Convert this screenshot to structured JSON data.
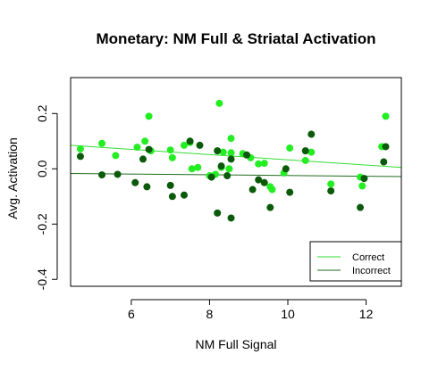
{
  "chart_data": {
    "type": "scatter",
    "title": "Monetary: NM Full & Striatal Activation",
    "xlabel": "NM Full Signal",
    "ylabel": "Avg. Activation",
    "xlim": [
      4.45,
      12.9
    ],
    "ylim": [
      -0.425,
      0.33
    ],
    "xticks": [
      6,
      8,
      10,
      12
    ],
    "yticks": [
      -0.4,
      -0.2,
      0.0,
      0.2
    ],
    "xtick_labels": [
      "6",
      "8",
      "10",
      "12"
    ],
    "ytick_labels": [
      "-0.4",
      "-0.2",
      "0.0",
      "0.2"
    ],
    "grid": false,
    "legend_position": "bottom-right",
    "series": [
      {
        "name": "Correct",
        "color": "#22ee22",
        "line_color": "#33dd33",
        "trend": [
          [
            4.45,
            0.085
          ],
          [
            12.9,
            0.005
          ]
        ],
        "points": [
          [
            4.7,
            0.072
          ],
          [
            5.25,
            0.092
          ],
          [
            5.6,
            0.048
          ],
          [
            6.15,
            0.078
          ],
          [
            6.35,
            0.1
          ],
          [
            6.45,
            0.19
          ],
          [
            6.5,
            0.065
          ],
          [
            7.0,
            0.068
          ],
          [
            7.05,
            0.04
          ],
          [
            7.35,
            0.085
          ],
          [
            7.5,
            0.095
          ],
          [
            7.55,
            0.0
          ],
          [
            7.7,
            0.005
          ],
          [
            8.0,
            -0.025
          ],
          [
            8.15,
            -0.02
          ],
          [
            8.25,
            0.237
          ],
          [
            8.3,
            0.005
          ],
          [
            8.35,
            0.06
          ],
          [
            8.5,
            0.0
          ],
          [
            8.55,
            0.058
          ],
          [
            8.55,
            0.11
          ],
          [
            8.85,
            0.055
          ],
          [
            9.05,
            0.04
          ],
          [
            9.25,
            0.018
          ],
          [
            9.4,
            0.02
          ],
          [
            9.55,
            -0.065
          ],
          [
            9.6,
            -0.075
          ],
          [
            9.9,
            -0.015
          ],
          [
            10.05,
            0.075
          ],
          [
            10.45,
            0.03
          ],
          [
            10.6,
            0.06
          ],
          [
            11.1,
            -0.055
          ],
          [
            11.85,
            -0.03
          ],
          [
            11.9,
            -0.062
          ],
          [
            12.4,
            0.08
          ],
          [
            12.5,
            0.19
          ]
        ]
      },
      {
        "name": "Incorrect",
        "color": "#0a5a0a",
        "line_color": "#1e6b1e",
        "trend": [
          [
            4.45,
            -0.017
          ],
          [
            12.9,
            -0.028
          ]
        ],
        "points": [
          [
            4.7,
            0.045
          ],
          [
            5.25,
            -0.022
          ],
          [
            5.65,
            -0.02
          ],
          [
            6.1,
            -0.05
          ],
          [
            6.3,
            0.035
          ],
          [
            6.4,
            -0.065
          ],
          [
            6.45,
            0.07
          ],
          [
            7.0,
            -0.06
          ],
          [
            7.05,
            -0.1
          ],
          [
            7.35,
            -0.095
          ],
          [
            7.5,
            0.1
          ],
          [
            7.75,
            0.085
          ],
          [
            8.05,
            -0.03
          ],
          [
            8.2,
            -0.16
          ],
          [
            8.2,
            0.065
          ],
          [
            8.3,
            0.01
          ],
          [
            8.45,
            -0.025
          ],
          [
            8.55,
            0.035
          ],
          [
            8.55,
            -0.178
          ],
          [
            8.95,
            0.05
          ],
          [
            9.1,
            -0.075
          ],
          [
            9.25,
            -0.04
          ],
          [
            9.4,
            -0.05
          ],
          [
            9.55,
            -0.14
          ],
          [
            9.95,
            0.0
          ],
          [
            10.05,
            -0.085
          ],
          [
            10.45,
            0.065
          ],
          [
            10.6,
            0.125
          ],
          [
            11.1,
            -0.08
          ],
          [
            11.85,
            -0.14
          ],
          [
            11.95,
            -0.035
          ],
          [
            12.45,
            0.025
          ],
          [
            12.5,
            0.08
          ]
        ]
      }
    ]
  }
}
